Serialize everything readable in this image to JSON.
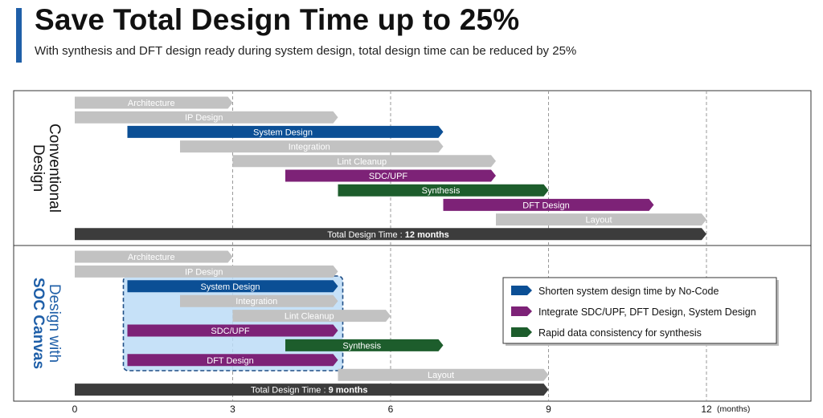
{
  "header": {
    "title": "Save Total Design Time up to 25%",
    "subtitle": "With synthesis and DFT design ready during system design, total design time can be reduced by 25%",
    "accent_color": "#1f5fa8"
  },
  "colors": {
    "gray": "#c2c2c2",
    "blue": "#0b4f95",
    "purple": "#7d2277",
    "green": "#1d5d2c",
    "dark": "#3c3c3c",
    "highlight_fill": "#bcdcf7",
    "highlight_border": "#1f4e86",
    "soc_label": "#1f5fa8"
  },
  "chart_data": {
    "type": "gantt",
    "x_unit": "months",
    "x_ticks": [
      0,
      3,
      6,
      9,
      12
    ],
    "xlim": [
      0,
      13.5
    ],
    "panels": [
      {
        "label_lines": [
          "Conventional",
          "Design"
        ],
        "tasks": [
          {
            "name": "Architecture",
            "start": 0,
            "end": 3,
            "color": "gray"
          },
          {
            "name": "IP Design",
            "start": 0,
            "end": 5,
            "color": "gray"
          },
          {
            "name": "System Design",
            "start": 1,
            "end": 7,
            "color": "blue"
          },
          {
            "name": "Integration",
            "start": 2,
            "end": 7,
            "color": "gray"
          },
          {
            "name": "Lint Cleanup",
            "start": 3,
            "end": 8,
            "color": "gray"
          },
          {
            "name": "SDC/UPF",
            "start": 4,
            "end": 8,
            "color": "purple"
          },
          {
            "name": "Synthesis",
            "start": 5,
            "end": 9,
            "color": "green"
          },
          {
            "name": "DFT Design",
            "start": 7,
            "end": 11,
            "color": "purple"
          },
          {
            "name": "Layout",
            "start": 8,
            "end": 12,
            "color": "gray"
          },
          {
            "name": "Total Design Time : ",
            "bold": "12 months",
            "start": 0,
            "end": 12,
            "color": "dark"
          }
        ]
      },
      {
        "label_lines": [
          "Design with",
          "SOC Canvas"
        ],
        "highlight": {
          "start": 1,
          "end": 5
        },
        "tasks": [
          {
            "name": "Architecture",
            "start": 0,
            "end": 3,
            "color": "gray"
          },
          {
            "name": "IP Design",
            "start": 0,
            "end": 5,
            "color": "gray"
          },
          {
            "name": "System Design",
            "start": 1,
            "end": 5,
            "color": "blue"
          },
          {
            "name": "Integration",
            "start": 2,
            "end": 5,
            "color": "gray"
          },
          {
            "name": "Lint Cleanup",
            "start": 3,
            "end": 6,
            "color": "gray"
          },
          {
            "name": "SDC/UPF",
            "start": 1,
            "end": 5,
            "color": "purple"
          },
          {
            "name": "Synthesis",
            "start": 4,
            "end": 7,
            "color": "green"
          },
          {
            "name": "DFT Design",
            "start": 1,
            "end": 5,
            "color": "purple"
          },
          {
            "name": "Layout",
            "start": 5,
            "end": 9,
            "color": "gray"
          },
          {
            "name": "Total Design Time : ",
            "bold": "9 months",
            "start": 0,
            "end": 9,
            "color": "dark"
          }
        ]
      }
    ],
    "legend": [
      {
        "label": "Shorten system design time by No-Code",
        "color": "blue"
      },
      {
        "label": "Integrate SDC/UPF, DFT Design, System Design",
        "color": "purple"
      },
      {
        "label": "Rapid data consistency for synthesis",
        "color": "green"
      }
    ],
    "legend_placement": "right"
  }
}
